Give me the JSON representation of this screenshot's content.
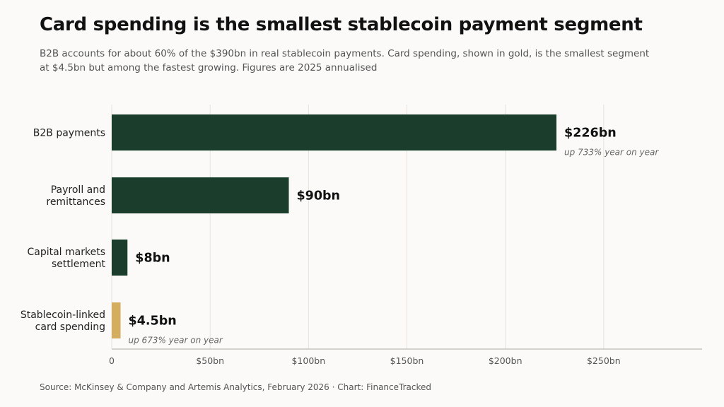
{
  "title": "Card spending is the smallest stablecoin payment segment",
  "subtitle": "B2B accounts for about 60% of the $390bn in real stablecoin payments. Card spending, shown in gold, is the smallest segment at $4.5bn but among the fastest growing. Figures are 2025 annualised",
  "source": "Source: McKinsey & Company and Artemis Analytics, February 2026 · Chart: FinanceTracked",
  "colors": {
    "main": "#1b3d2b",
    "highlight": "#d4ad5e",
    "grid": "#e6e3df",
    "axis": "#bdbab5",
    "label": "#222222",
    "note": "#666666"
  },
  "chart_data": {
    "type": "bar",
    "orientation": "horizontal",
    "categories": [
      [
        "B2B payments"
      ],
      [
        "Payroll and",
        "remittances"
      ],
      [
        "Capital markets",
        "settlement"
      ],
      [
        "Stablecoin-linked",
        "card spending"
      ]
    ],
    "values": [
      226,
      90,
      8,
      4.5
    ],
    "value_labels": [
      "$226bn",
      "$90bn",
      "$8bn",
      "$4.5bn"
    ],
    "notes": [
      "up 733% year on year",
      "",
      "",
      "up 673% year on year"
    ],
    "highlight_index": 3,
    "xlim": [
      0,
      300
    ],
    "xticks": [
      0,
      50,
      100,
      150,
      200,
      250
    ],
    "xtick_labels": [
      "0",
      "$50bn",
      "$100bn",
      "$150bn",
      "$200bn",
      "$250bn"
    ],
    "grid": true,
    "legend": false
  }
}
